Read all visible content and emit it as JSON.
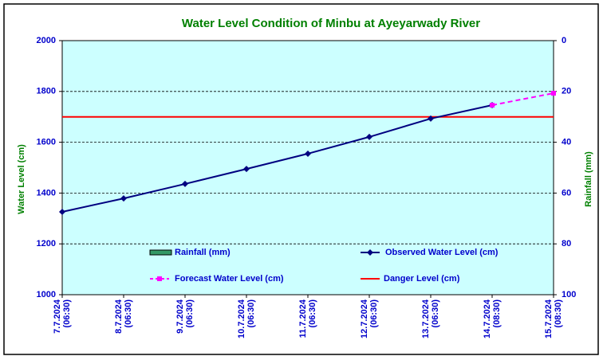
{
  "chart_data": {
    "type": "line",
    "title": "Water Level Condition of Minbu at Ayeyarwady River",
    "y_label": "Water Level (cm)",
    "y2_label": "Rainfall (mm)",
    "categories": [
      "7.7.2024 (06:30)",
      "8.7.2024 (06:30)",
      "9.7.2024 (06:30)",
      "10.7.2024 (06:30)",
      "11.7.2024 (06:30)",
      "12.7.2024 (06:30)",
      "13.7.2024 (06:30)",
      "14.7.2024 (08:30)",
      "15.7.2024 (08:30)"
    ],
    "series": [
      {
        "name": "Rainfall (mm)",
        "color": "#339966",
        "axis": "y2",
        "kind": "bar",
        "values": [
          null,
          null,
          null,
          null,
          null,
          null,
          null,
          null,
          null
        ]
      },
      {
        "name": "Observed Water Level (cm)",
        "color": "#000080",
        "kind": "line",
        "values": [
          1326,
          1379,
          1436,
          1495,
          1555,
          1621,
          1693,
          1746,
          null
        ]
      },
      {
        "name": "Forecast Water Level (cm)",
        "color": "#ff00ff",
        "kind": "dashed",
        "values": [
          null,
          null,
          null,
          null,
          null,
          null,
          null,
          1746,
          1793
        ]
      }
    ],
    "danger_level": {
      "name": "Danger Level (cm)",
      "color": "#ff0000",
      "value": 1700
    },
    "ylim": [
      1000,
      2000
    ],
    "yticks": [
      1000,
      1200,
      1400,
      1600,
      1800,
      2000
    ],
    "y2lim": [
      100,
      0
    ],
    "y2ticks": [
      0,
      20,
      40,
      60,
      80,
      100
    ],
    "grid": true
  }
}
